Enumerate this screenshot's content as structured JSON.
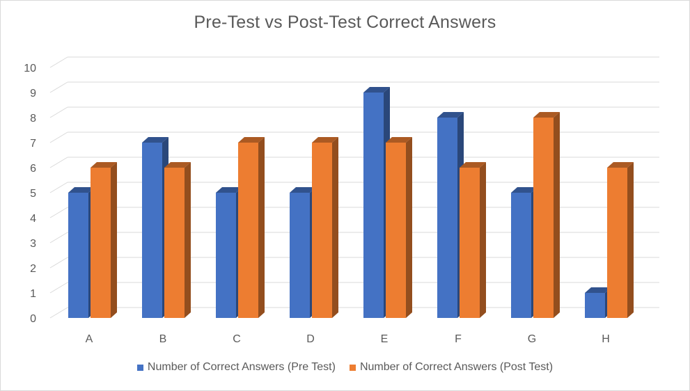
{
  "chart_data": {
    "type": "bar",
    "title": "Pre-Test vs Post-Test Correct Answers",
    "categories": [
      "A",
      "B",
      "C",
      "D",
      "E",
      "F",
      "G",
      "H"
    ],
    "series": [
      {
        "name": "Number of Correct Answers (Pre Test)",
        "values": [
          5,
          7,
          5,
          5,
          9,
          8,
          5,
          1
        ],
        "color": "#4472c4"
      },
      {
        "name": "Number of Correct Answers (Post Test)",
        "values": [
          6,
          6,
          7,
          7,
          7,
          6,
          8,
          6
        ],
        "color": "#ed7d31"
      }
    ],
    "yticks": [
      "0",
      "1",
      "2",
      "3",
      "4",
      "5",
      "6",
      "7",
      "8",
      "9",
      "10"
    ],
    "ylim": [
      0,
      10
    ],
    "grid": true,
    "style": "3d-clustered-column",
    "legend_position": "bottom"
  }
}
